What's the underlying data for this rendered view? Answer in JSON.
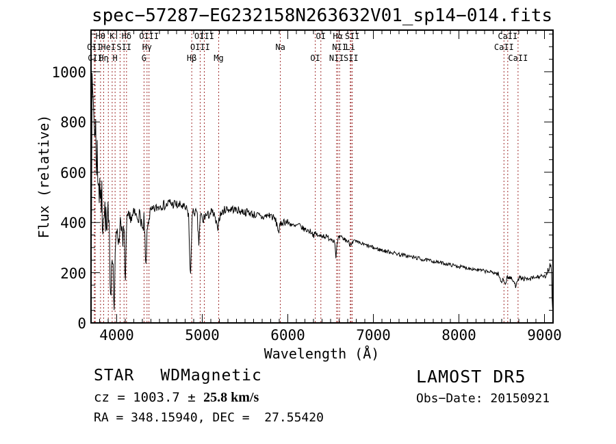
{
  "title": "spec−57287−EG232158N263632V01_sp14−014.fits",
  "colors": {
    "line_marker": "#9e2a2a",
    "spectrum": "#000000",
    "frame": "#000000"
  },
  "footer": {
    "class_label": "STAR",
    "subclass_label": "WDMagnetic",
    "cz_prefix": "cz = 1003.7 ± ",
    "cz_value": "25.8 km/s",
    "radec": "RA = 348.15940, DEC =  27.55420",
    "survey": "LAMOST DR5",
    "obs_date": "Obs−Date: 20150921"
  },
  "chart_data": {
    "type": "line",
    "title": "spec−57287−EG232158N263632V01_sp14−014.fits",
    "xlabel": "Wavelength (Å)",
    "ylabel": "Flux (relative)",
    "xlim": [
      3700,
      9100
    ],
    "ylim": [
      0,
      1166
    ],
    "x_ticks": [
      4000,
      5000,
      6000,
      7000,
      8000,
      9000
    ],
    "y_ticks": [
      0,
      200,
      400,
      600,
      800,
      1000
    ],
    "x_minor_step": 100,
    "y_minor_step": 50,
    "grid": false,
    "legend": null,
    "redshift_factor": 1.00335,
    "spectral_lines": [
      {
        "label": "OII",
        "row": 2,
        "wl": 3727
      },
      {
        "label": "CII",
        "row": 3,
        "wl": 3736
      },
      {
        "label": "Hθ",
        "row": 1,
        "wl": 3798
      },
      {
        "label": "Hη",
        "row": 3,
        "wl": 3835
      },
      {
        "label": "HeI",
        "row": 2,
        "wl": 3889
      },
      {
        "label": "K",
        "row": 1,
        "wl": 3934
      },
      {
        "label": "H",
        "row": 3,
        "wl": 3968
      },
      {
        "label": "",
        "row": 2,
        "wl": 4026
      },
      {
        "label": "SII",
        "row": 2,
        "wl": 4072
      },
      {
        "label": "Hδ",
        "row": 1,
        "wl": 4101
      },
      {
        "label": "G",
        "row": 3,
        "wl": 4305
      },
      {
        "label": "Hγ",
        "row": 2,
        "wl": 4340
      },
      {
        "label": "OIII",
        "row": 1,
        "wl": 4363
      },
      {
        "label": "Hβ",
        "row": 3,
        "wl": 4861
      },
      {
        "label": "OIII",
        "row": 2,
        "wl": 4959
      },
      {
        "label": "OIII",
        "row": 1,
        "wl": 5007
      },
      {
        "label": "Mg",
        "row": 3,
        "wl": 5175
      },
      {
        "label": "Na",
        "row": 2,
        "wl": 5893
      },
      {
        "label": "OI",
        "row": 3,
        "wl": 6300
      },
      {
        "label": "OI",
        "row": 1,
        "wl": 6365
      },
      {
        "label": "NII",
        "row": 3,
        "wl": 6548
      },
      {
        "label": "Hα",
        "row": 1,
        "wl": 6563
      },
      {
        "label": "NII",
        "row": 2,
        "wl": 6583
      },
      {
        "label": "Li",
        "row": 2,
        "wl": 6708
      },
      {
        "label": "SII",
        "row": 3,
        "wl": 6716
      },
      {
        "label": "SII",
        "row": 1,
        "wl": 6731
      },
      {
        "label": "CaII",
        "row": 2,
        "wl": 8498
      },
      {
        "label": "CaII",
        "row": 1,
        "wl": 8542
      },
      {
        "label": "CaII",
        "row": 3,
        "wl": 8662
      }
    ],
    "anchors": [
      [
        3700,
        120
      ],
      [
        3705,
        500
      ],
      [
        3710,
        800
      ],
      [
        3714,
        960
      ],
      [
        3718,
        880
      ],
      [
        3722,
        930
      ],
      [
        3727,
        840
      ],
      [
        3732,
        900
      ],
      [
        3738,
        760
      ],
      [
        3744,
        830
      ],
      [
        3750,
        690
      ],
      [
        3756,
        790
      ],
      [
        3762,
        640
      ],
      [
        3770,
        700
      ],
      [
        3778,
        560
      ],
      [
        3786,
        640
      ],
      [
        3795,
        520
      ],
      [
        3805,
        590
      ],
      [
        3815,
        440
      ],
      [
        3825,
        520
      ],
      [
        3835,
        380
      ],
      [
        3845,
        480
      ],
      [
        3855,
        420
      ],
      [
        3865,
        450
      ],
      [
        3875,
        390
      ],
      [
        3885,
        340
      ],
      [
        3895,
        420
      ],
      [
        3905,
        380
      ],
      [
        3915,
        300
      ],
      [
        3925,
        200
      ],
      [
        3933,
        110
      ],
      [
        3940,
        240
      ],
      [
        3948,
        330
      ],
      [
        3955,
        250
      ],
      [
        3962,
        140
      ],
      [
        3970,
        60
      ],
      [
        3978,
        170
      ],
      [
        3986,
        280
      ],
      [
        3995,
        350
      ],
      [
        4005,
        390
      ],
      [
        4015,
        360
      ],
      [
        4026,
        290
      ],
      [
        4035,
        390
      ],
      [
        4045,
        420
      ],
      [
        4055,
        400
      ],
      [
        4065,
        340
      ],
      [
        4072,
        300
      ],
      [
        4080,
        380
      ],
      [
        4090,
        330
      ],
      [
        4101,
        150
      ],
      [
        4110,
        300
      ],
      [
        4120,
        390
      ],
      [
        4130,
        420
      ],
      [
        4145,
        400
      ],
      [
        4160,
        430
      ],
      [
        4175,
        415
      ],
      [
        4190,
        425
      ],
      [
        4210,
        435
      ],
      [
        4230,
        420
      ],
      [
        4250,
        430
      ],
      [
        4270,
        425
      ],
      [
        4290,
        405
      ],
      [
        4305,
        345
      ],
      [
        4318,
        410
      ],
      [
        4330,
        330
      ],
      [
        4340,
        190
      ],
      [
        4350,
        320
      ],
      [
        4363,
        390
      ],
      [
        4375,
        420
      ],
      [
        4390,
        435
      ],
      [
        4410,
        445
      ],
      [
        4430,
        450
      ],
      [
        4450,
        455
      ],
      [
        4475,
        460
      ],
      [
        4500,
        465
      ],
      [
        4525,
        470
      ],
      [
        4550,
        470
      ],
      [
        4575,
        465
      ],
      [
        4600,
        475
      ],
      [
        4625,
        480
      ],
      [
        4650,
        470
      ],
      [
        4675,
        475
      ],
      [
        4700,
        470
      ],
      [
        4725,
        465
      ],
      [
        4750,
        470
      ],
      [
        4775,
        460
      ],
      [
        4800,
        455
      ],
      [
        4820,
        450
      ],
      [
        4840,
        430
      ],
      [
        4861,
        160
      ],
      [
        4880,
        420
      ],
      [
        4900,
        445
      ],
      [
        4920,
        440
      ],
      [
        4940,
        430
      ],
      [
        4959,
        310
      ],
      [
        4975,
        420
      ],
      [
        4990,
        430
      ],
      [
        5007,
        395
      ],
      [
        5020,
        420
      ],
      [
        5040,
        430
      ],
      [
        5060,
        425
      ],
      [
        5085,
        435
      ],
      [
        5110,
        440
      ],
      [
        5135,
        430
      ],
      [
        5160,
        400
      ],
      [
        5175,
        370
      ],
      [
        5190,
        405
      ],
      [
        5210,
        430
      ],
      [
        5235,
        440
      ],
      [
        5260,
        450
      ],
      [
        5290,
        455
      ],
      [
        5320,
        450
      ],
      [
        5350,
        455
      ],
      [
        5380,
        450
      ],
      [
        5410,
        450
      ],
      [
        5440,
        445
      ],
      [
        5470,
        445
      ],
      [
        5500,
        440
      ],
      [
        5530,
        442
      ],
      [
        5560,
        438
      ],
      [
        5590,
        432
      ],
      [
        5620,
        430
      ],
      [
        5650,
        428
      ],
      [
        5680,
        422
      ],
      [
        5710,
        420
      ],
      [
        5740,
        425
      ],
      [
        5770,
        428
      ],
      [
        5800,
        430
      ],
      [
        5825,
        420
      ],
      [
        5850,
        412
      ],
      [
        5875,
        390
      ],
      [
        5893,
        362
      ],
      [
        5910,
        385
      ],
      [
        5930,
        400
      ],
      [
        5955,
        405
      ],
      [
        5980,
        402
      ],
      [
        6005,
        398
      ],
      [
        6030,
        395
      ],
      [
        6055,
        390
      ],
      [
        6080,
        382
      ],
      [
        6105,
        388
      ],
      [
        6130,
        390
      ],
      [
        6155,
        382
      ],
      [
        6180,
        375
      ],
      [
        6205,
        372
      ],
      [
        6230,
        368
      ],
      [
        6255,
        366
      ],
      [
        6280,
        362
      ],
      [
        6300,
        348
      ],
      [
        6320,
        355
      ],
      [
        6342,
        352
      ],
      [
        6365,
        342
      ],
      [
        6388,
        350
      ],
      [
        6410,
        348
      ],
      [
        6435,
        345
      ],
      [
        6460,
        340
      ],
      [
        6485,
        338
      ],
      [
        6510,
        335
      ],
      [
        6530,
        332
      ],
      [
        6548,
        325
      ],
      [
        6556,
        300
      ],
      [
        6563,
        252
      ],
      [
        6572,
        300
      ],
      [
        6585,
        330
      ],
      [
        6605,
        340
      ],
      [
        6625,
        338
      ],
      [
        6648,
        335
      ],
      [
        6670,
        332
      ],
      [
        6690,
        328
      ],
      [
        6708,
        322
      ],
      [
        6716,
        318
      ],
      [
        6731,
        312
      ],
      [
        6748,
        325
      ],
      [
        6770,
        325
      ],
      [
        6800,
        322
      ],
      [
        6830,
        318
      ],
      [
        6860,
        315
      ],
      [
        6890,
        312
      ],
      [
        6920,
        308
      ],
      [
        6950,
        305
      ],
      [
        6980,
        302
      ],
      [
        7010,
        298
      ],
      [
        7040,
        295
      ],
      [
        7070,
        292
      ],
      [
        7100,
        290
      ],
      [
        7135,
        286
      ],
      [
        7170,
        284
      ],
      [
        7205,
        282
      ],
      [
        7240,
        278
      ],
      [
        7275,
        276
      ],
      [
        7310,
        272
      ],
      [
        7345,
        270
      ],
      [
        7380,
        268
      ],
      [
        7415,
        265
      ],
      [
        7450,
        262
      ],
      [
        7485,
        260
      ],
      [
        7520,
        258
      ],
      [
        7555,
        254
      ],
      [
        7590,
        252
      ],
      [
        7625,
        250
      ],
      [
        7660,
        248
      ],
      [
        7695,
        246
      ],
      [
        7730,
        243
      ],
      [
        7765,
        241
      ],
      [
        7800,
        239
      ],
      [
        7835,
        236
      ],
      [
        7870,
        234
      ],
      [
        7905,
        231
      ],
      [
        7940,
        229
      ],
      [
        7975,
        226
      ],
      [
        8010,
        224
      ],
      [
        8045,
        222
      ],
      [
        8080,
        220
      ],
      [
        8115,
        218
      ],
      [
        8150,
        216
      ],
      [
        8185,
        214
      ],
      [
        8220,
        211
      ],
      [
        8255,
        209
      ],
      [
        8290,
        207
      ],
      [
        8325,
        205
      ],
      [
        8360,
        203
      ],
      [
        8395,
        201
      ],
      [
        8430,
        198
      ],
      [
        8460,
        195
      ],
      [
        8480,
        175
      ],
      [
        8498,
        158
      ],
      [
        8512,
        180
      ],
      [
        8528,
        170
      ],
      [
        8542,
        150
      ],
      [
        8558,
        178
      ],
      [
        8575,
        182
      ],
      [
        8600,
        180
      ],
      [
        8620,
        172
      ],
      [
        8640,
        165
      ],
      [
        8662,
        146
      ],
      [
        8680,
        172
      ],
      [
        8700,
        180
      ],
      [
        8725,
        178
      ],
      [
        8750,
        176
      ],
      [
        8775,
        174
      ],
      [
        8800,
        172
      ],
      [
        8830,
        174
      ],
      [
        8860,
        178
      ],
      [
        8890,
        180
      ],
      [
        8920,
        183
      ],
      [
        8950,
        186
      ],
      [
        8980,
        182
      ],
      [
        9010,
        185
      ],
      [
        9035,
        195
      ],
      [
        9055,
        215
      ],
      [
        9070,
        245
      ],
      [
        9080,
        220
      ],
      [
        9088,
        120
      ],
      [
        9095,
        60
      ],
      [
        9100,
        35
      ]
    ],
    "noise_segments": [
      [
        3700,
        3810,
        120
      ],
      [
        3810,
        3930,
        80
      ],
      [
        3930,
        4000,
        60
      ],
      [
        4000,
        4150,
        40
      ],
      [
        4150,
        4400,
        30
      ],
      [
        4400,
        5200,
        20
      ],
      [
        5200,
        6000,
        16
      ],
      [
        6000,
        6800,
        11
      ],
      [
        6800,
        7600,
        8
      ],
      [
        7600,
        8450,
        7
      ],
      [
        8450,
        9040,
        9
      ],
      [
        9040,
        9101,
        20
      ]
    ],
    "sample_step": 6
  }
}
